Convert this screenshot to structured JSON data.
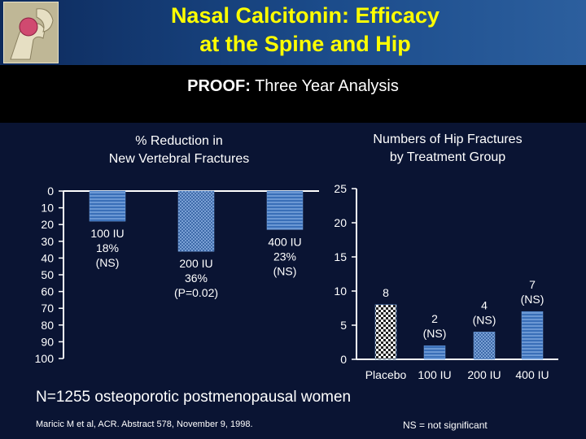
{
  "header": {
    "title_line1": "Nasal Calcitonin: Efficacy",
    "title_line2": "at the Spine and Hip",
    "subtitle_bold": "PROOF:",
    "subtitle_rest": " Three Year Analysis"
  },
  "chart_data": [
    {
      "type": "bar",
      "title_line1": "% Reduction in",
      "title_line2": "New Vertebral Fractures",
      "ylim": [
        0,
        100
      ],
      "yticks": [
        "0",
        "10",
        "20",
        "30",
        "40",
        "50",
        "60",
        "70",
        "80",
        "90",
        "100"
      ],
      "categories": [
        "100 IU",
        "200 IU",
        "400 IU"
      ],
      "values": [
        18,
        36,
        23
      ],
      "labels": [
        [
          "100 IU",
          "18%",
          "(NS)"
        ],
        [
          "200 IU",
          "36%",
          "(P=0.02)"
        ],
        [
          "400 IU",
          "23%",
          "(NS)"
        ]
      ],
      "axis_inverted": true
    },
    {
      "type": "bar",
      "title_line1": "Numbers of Hip Fractures",
      "title_line2": "by Treatment Group",
      "ylim": [
        0,
        25
      ],
      "yticks": [
        "0",
        "5",
        "10",
        "15",
        "20",
        "25"
      ],
      "categories": [
        "Placebo",
        "100 IU",
        "200 IU",
        "400 IU"
      ],
      "values": [
        8,
        2,
        4,
        7
      ],
      "labels": [
        [
          "8"
        ],
        [
          "2",
          "(NS)"
        ],
        [
          "4",
          "(NS)"
        ],
        [
          "7",
          "(NS)"
        ]
      ]
    }
  ],
  "footer": {
    "main": "N=1255 osteoporotic postmenopausal women",
    "ref": "Maricic M et al, ACR. Abstract 578, November 9, 1998.",
    "ns_note": "NS = not significant"
  },
  "colors": {
    "title": "#ffff00",
    "bar_blue": "#3a6fb8",
    "background": "#0a1433"
  }
}
